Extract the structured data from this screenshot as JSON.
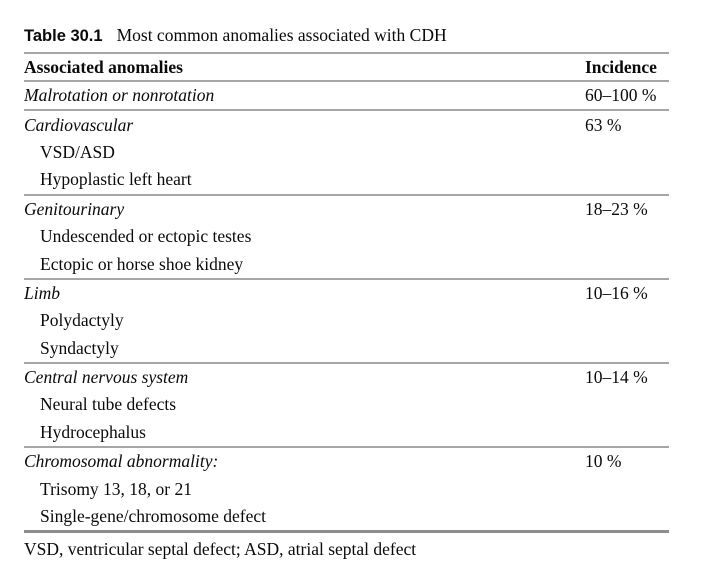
{
  "table": {
    "label": "Table 30.1",
    "caption": "Most common anomalies associated with CDH",
    "columns": [
      "Associated anomalies",
      "Incidence"
    ],
    "groups": [
      {
        "name": "Malrotation or nonrotation",
        "incidence": "60–100 %",
        "items": []
      },
      {
        "name": "Cardiovascular",
        "incidence": "63 %",
        "items": [
          "VSD/ASD",
          "Hypoplastic left heart"
        ]
      },
      {
        "name": "Genitourinary",
        "incidence": "18–23 %",
        "items": [
          "Undescended or ectopic testes",
          "Ectopic or horse shoe kidney"
        ]
      },
      {
        "name": "Limb",
        "incidence": "10–16 %",
        "items": [
          "Polydactyly",
          "Syndactyly"
        ]
      },
      {
        "name": "Central nervous system",
        "incidence": "10–14 %",
        "items": [
          "Neural tube defects",
          "Hydrocephalus"
        ]
      },
      {
        "name": "Chromosomal abnormality:",
        "incidence": "10 %",
        "items": [
          "Trisomy 13, 18, or 21",
          "Single-gene/chromosome defect"
        ]
      }
    ],
    "footnote": "VSD, ventricular septal defect; ASD, atrial septal defect",
    "rule_color": "#a6a6a6",
    "bottom_rule_color": "#8d8d8d"
  }
}
